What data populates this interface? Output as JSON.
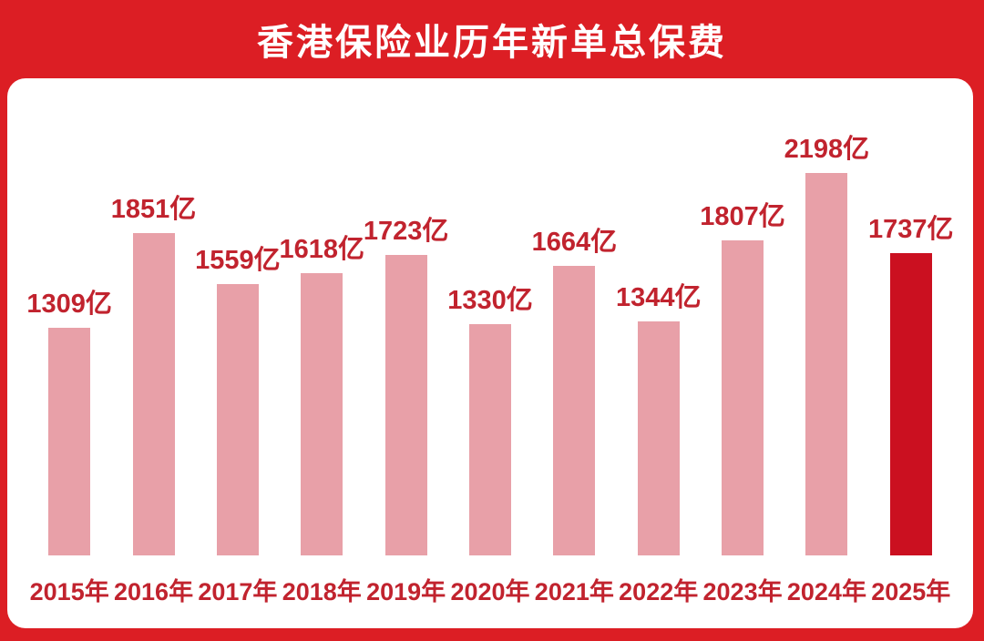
{
  "title": "香港保险业历年新单总保费",
  "chart_data": {
    "type": "bar",
    "title": "香港保险业历年新单总保费",
    "categories": [
      "2015年",
      "2016年",
      "2017年",
      "2018年",
      "2019年",
      "2020年",
      "2021年",
      "2022年",
      "2023年",
      "2024年",
      "2025年"
    ],
    "values": [
      1309,
      1851,
      1559,
      1618,
      1723,
      1330,
      1664,
      1344,
      1807,
      2198,
      1737
    ],
    "value_labels": [
      "1309亿",
      "1851亿",
      "1559亿",
      "1618亿",
      "1723亿",
      "1330亿",
      "1664亿",
      "1344亿",
      "1807亿",
      "2198亿",
      "1737亿"
    ],
    "unit": "亿",
    "highlight_index": 10,
    "ylim": [
      0,
      2300
    ],
    "grid": false,
    "legend": false,
    "xlabel": "",
    "ylabel": "",
    "colors": {
      "background": "#dc1e24",
      "card": "#ffffff",
      "bar": "#e8a0a8",
      "highlight_bar": "#cb1020",
      "label_text": "#c1232e",
      "title_text": "#ffffff"
    }
  }
}
